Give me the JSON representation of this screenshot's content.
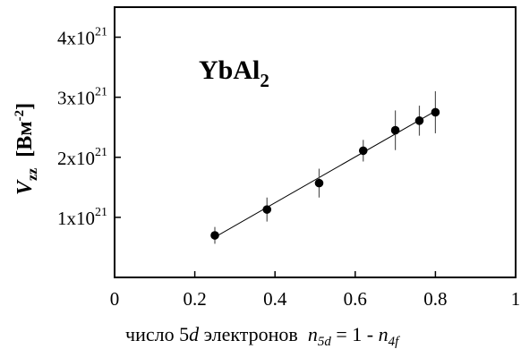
{
  "chart_data": {
    "type": "scatter",
    "annotation": {
      "main": "YbAl",
      "sub": "2"
    },
    "xlabel": {
      "prefix": "число ",
      "num": "5",
      "d": "d",
      "suffix": " электронов  ",
      "n1": "n",
      "n1sub": "5d",
      "eq": " = 1 - ",
      "n2": "n",
      "n2sub": "4f"
    },
    "ylabel": {
      "V": "V",
      "Vsub": "zz",
      "unit_open": "  [Вм",
      "unit_sup": "-2",
      "unit_close": "]"
    },
    "xlim": [
      0,
      1
    ],
    "ylim": [
      0,
      4.5e+21
    ],
    "x_ticks": [
      {
        "value": 0,
        "label": "0"
      },
      {
        "value": 0.2,
        "label": "0.2"
      },
      {
        "value": 0.4,
        "label": "0.4"
      },
      {
        "value": 0.6,
        "label": "0.6"
      },
      {
        "value": 0.8,
        "label": "0.8"
      },
      {
        "value": 1,
        "label": "1"
      }
    ],
    "y_ticks": [
      {
        "value": 1e+21,
        "mant": "1x10",
        "exp": "21"
      },
      {
        "value": 2e+21,
        "mant": "2x10",
        "exp": "21"
      },
      {
        "value": 3e+21,
        "mant": "3x10",
        "exp": "21"
      },
      {
        "value": 4e+21,
        "mant": "4x10",
        "exp": "21"
      }
    ],
    "points": [
      {
        "x": 0.25,
        "y": 7e+20,
        "err": 1.4e+20
      },
      {
        "x": 0.38,
        "y": 1.13e+21,
        "err": 2e+20
      },
      {
        "x": 0.51,
        "y": 1.57e+21,
        "err": 2.4e+20
      },
      {
        "x": 0.62,
        "y": 2.11e+21,
        "err": 1.8e+20
      },
      {
        "x": 0.7,
        "y": 2.45e+21,
        "err": 3.3e+20
      },
      {
        "x": 0.76,
        "y": 2.61e+21,
        "err": 2.5e+20
      },
      {
        "x": 0.8,
        "y": 2.75e+21,
        "err": 3.5e+20
      }
    ],
    "fit_line": {
      "x": [
        0.25,
        0.8
      ],
      "y": [
        6.7e+20,
        2.77e+21
      ]
    },
    "grid": false,
    "legend": "none"
  }
}
